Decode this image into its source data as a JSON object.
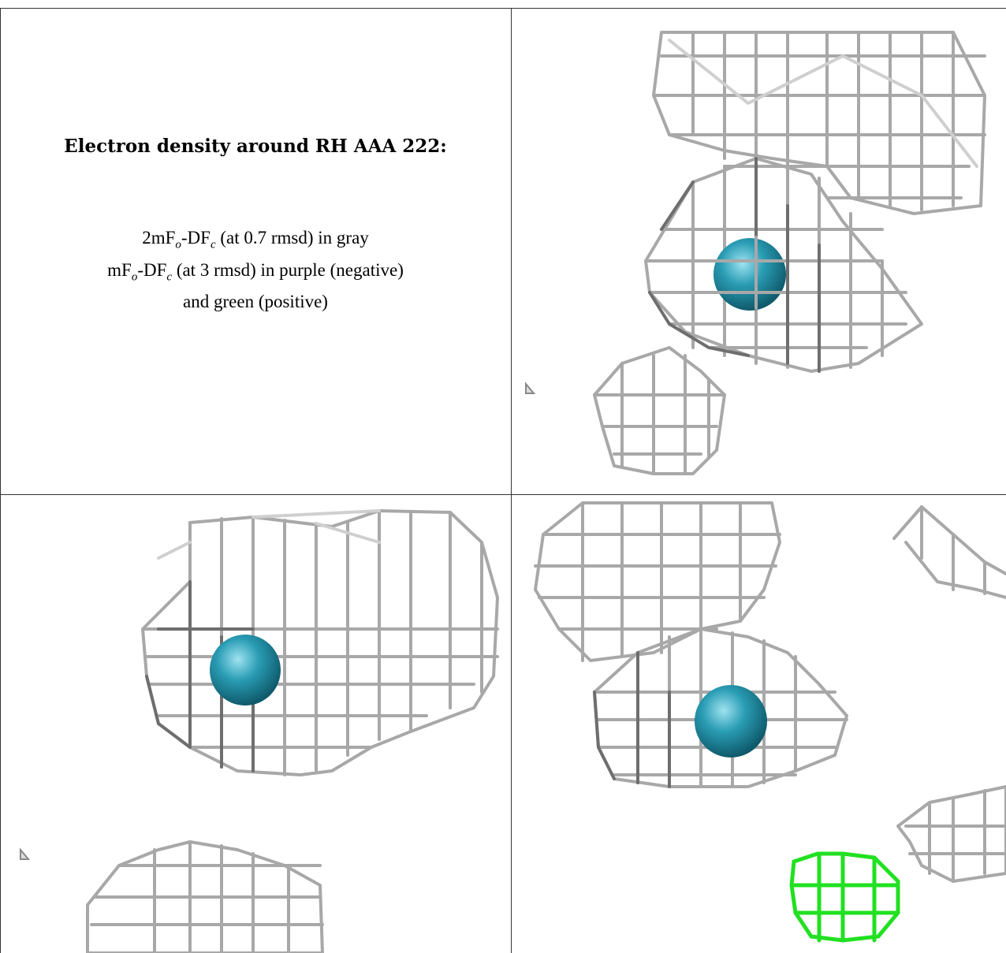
{
  "caption": {
    "title": "Electron density around RH AAA 222:",
    "line1": "2mF",
    "line1_sub1": "o",
    "line1_mid": "-DF",
    "line1_sub2": "c",
    "line1_end": " (at 0.7 rmsd) in gray",
    "line2": "mF",
    "line2_sub1": "o",
    "line2_mid": "-DF",
    "line2_sub2": "c",
    "line2_end": " (at 3 rmsd) in purple (negative)",
    "line3": "and green (positive)"
  },
  "colors": {
    "mesh_gray": "#a8a8a8",
    "mesh_positive": "#22e022",
    "atom": "#2a9db5"
  }
}
